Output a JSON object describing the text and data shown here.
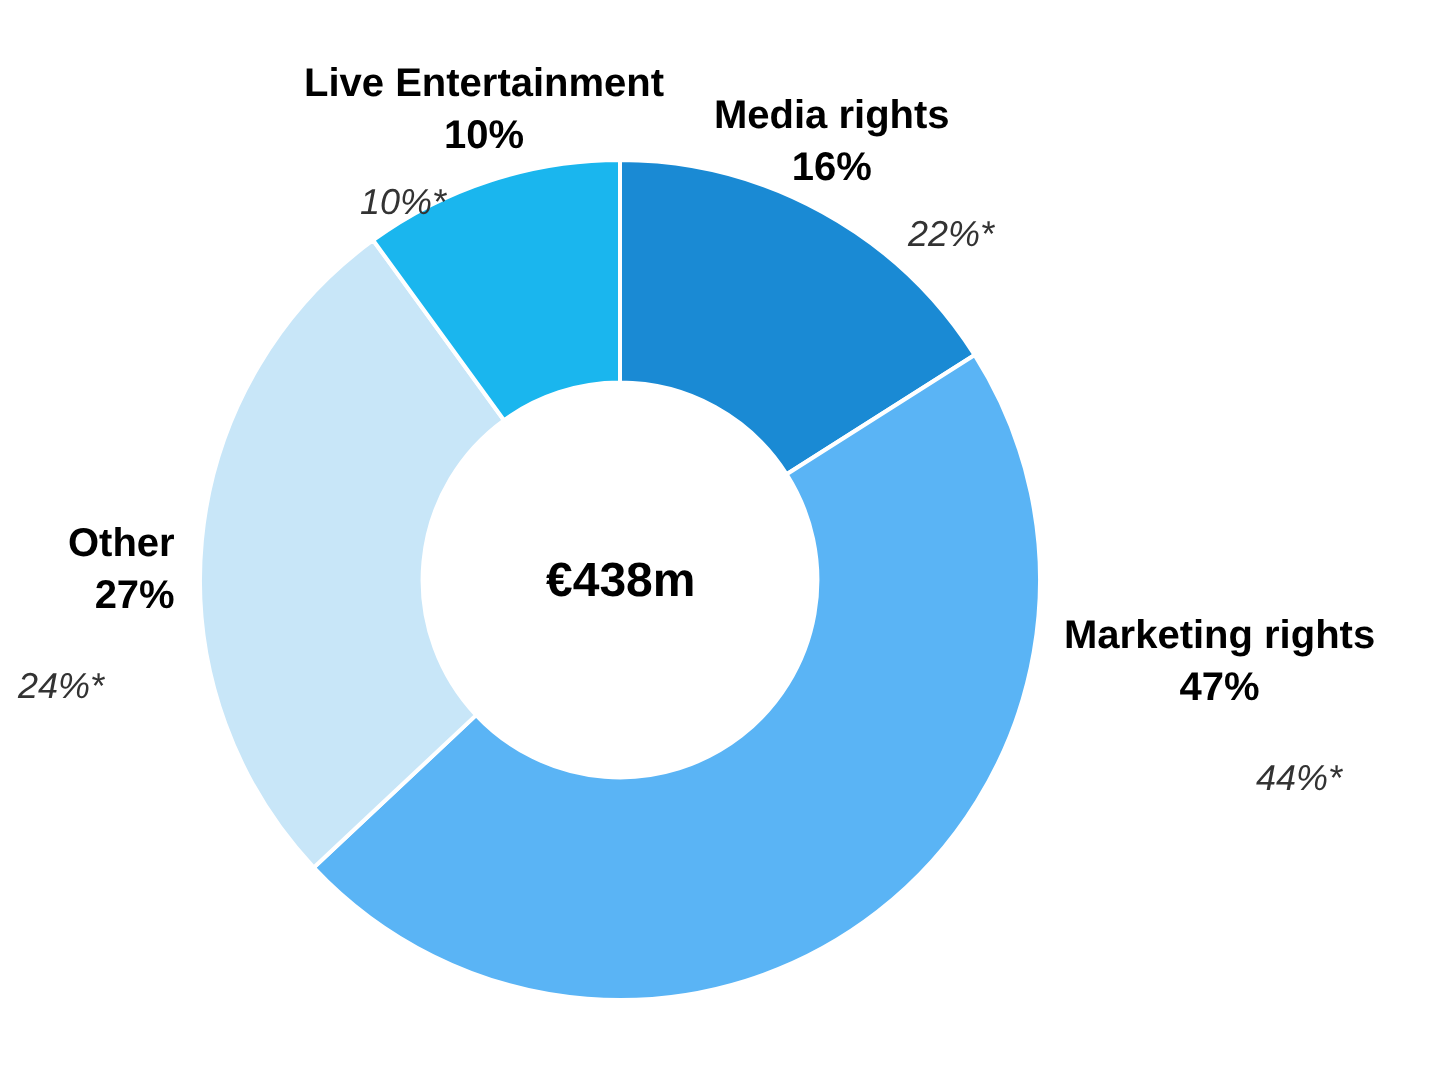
{
  "chart_data": {
    "type": "donut",
    "title": "€438m",
    "categories": [
      "Media rights",
      "Marketing rights",
      "Other",
      "Live Entertainment"
    ],
    "values": [
      16,
      47,
      27,
      10
    ],
    "value_labels": [
      "16%",
      "47%",
      "27%",
      "10%"
    ],
    "colors": [
      "#1a8ad4",
      "#5ab4f5",
      "#c8e6f8",
      "#1ab6ee"
    ],
    "annotations": [
      "22%*",
      "44%*",
      "24%*",
      "10%*"
    ],
    "legend": false
  }
}
